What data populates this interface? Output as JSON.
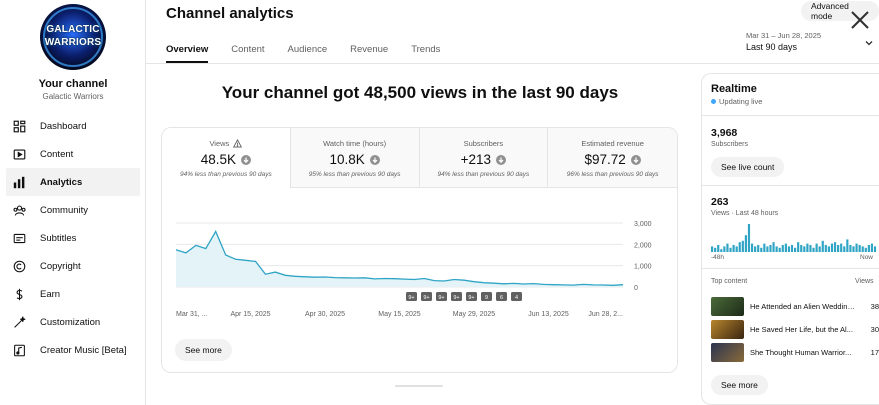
{
  "app": {
    "title": "Channel analytics",
    "advanced_mode": "Advanced mode",
    "date_range": "Mar 31 – Jun 28, 2025",
    "date_label": "Last 90 days"
  },
  "channel": {
    "logo_line1": "GALACTIC",
    "logo_line2": "WARRIORS",
    "label": "Your channel",
    "name": "Galactic Warriors"
  },
  "sidebar": {
    "items": [
      {
        "label": "Dashboard",
        "icon": "dashboard-icon"
      },
      {
        "label": "Content",
        "icon": "content-icon"
      },
      {
        "label": "Analytics",
        "icon": "analytics-icon",
        "active": true
      },
      {
        "label": "Community",
        "icon": "community-icon"
      },
      {
        "label": "Subtitles",
        "icon": "subtitles-icon"
      },
      {
        "label": "Copyright",
        "icon": "copyright-icon"
      },
      {
        "label": "Earn",
        "icon": "earn-icon"
      },
      {
        "label": "Customization",
        "icon": "customization-icon"
      },
      {
        "label": "Creator Music [Beta]",
        "icon": "creator-music-icon"
      }
    ]
  },
  "tabs": [
    "Overview",
    "Content",
    "Audience",
    "Revenue",
    "Trends"
  ],
  "headline": "Your channel got 48,500 views in the last 90 days",
  "metrics": [
    {
      "label": "Views",
      "value": "48.5K",
      "note": "94% less than previous 90 days"
    },
    {
      "label": "Watch time (hours)",
      "value": "10.8K",
      "note": "95% less than previous 90 days"
    },
    {
      "label": "Subscribers",
      "value": "+213",
      "note": "94% less than previous 90 days"
    },
    {
      "label": "Estimated revenue",
      "value": "$97.72",
      "note": "96% less than previous 90 days"
    }
  ],
  "chart_data": {
    "type": "line",
    "x": [
      "Mar 31",
      "Apr 2",
      "Apr 4",
      "Apr 6",
      "Apr 8",
      "Apr 10",
      "Apr 12",
      "Apr 14",
      "Apr 16",
      "Apr 18",
      "Apr 20",
      "Apr 22",
      "Apr 24",
      "Apr 26",
      "Apr 28",
      "Apr 30",
      "May 2",
      "May 4",
      "May 6",
      "May 8",
      "May 10",
      "May 12",
      "May 14",
      "May 16",
      "May 18",
      "May 20",
      "May 22",
      "May 24",
      "May 26",
      "May 28",
      "May 30",
      "Jun 1",
      "Jun 3",
      "Jun 5",
      "Jun 7",
      "Jun 9",
      "Jun 11",
      "Jun 13",
      "Jun 15",
      "Jun 17",
      "Jun 19",
      "Jun 21",
      "Jun 23",
      "Jun 25",
      "Jun 27",
      "Jun 28"
    ],
    "values": [
      1750,
      1600,
      1950,
      1800,
      2600,
      1500,
      1300,
      1250,
      1200,
      600,
      700,
      550,
      500,
      480,
      460,
      470,
      440,
      430,
      420,
      430,
      380,
      400,
      390,
      370,
      350,
      400,
      300,
      280,
      350,
      320,
      250,
      200,
      180,
      150,
      170,
      140,
      160,
      120,
      110,
      100,
      90,
      120,
      100,
      95,
      80,
      110
    ],
    "x_tick_labels": [
      "Mar 31, ...",
      "Apr 15, 2025",
      "Apr 30, 2025",
      "May 15, 2025",
      "May 29, 2025",
      "Jun 13, 2025",
      "Jun 28, 2..."
    ],
    "y_tick_labels": [
      "3,000",
      "2,000",
      "1,000",
      "0"
    ],
    "ylim": [
      0,
      3000
    ],
    "line_color": "#2fa4c5",
    "fill_color": "#e4f3f8",
    "grid": true,
    "markers": [
      "9+",
      "9+",
      "9+",
      "9+",
      "9+",
      "9",
      "6",
      "4"
    ]
  },
  "see_more": "See more",
  "realtime": {
    "title": "Realtime",
    "updating": "Updating live",
    "subscribers_value": "3,968",
    "subscribers_label": "Subscribers",
    "see_live_count": "See live count",
    "views_value": "263",
    "views_label": "Views · Last 48 hours",
    "axis_left": "-48h",
    "axis_right": "Now",
    "top_content_label": "Top content",
    "views_col": "Views",
    "bars": [
      4,
      3,
      5,
      2,
      4,
      6,
      3,
      5,
      4,
      7,
      8,
      12,
      20,
      6,
      4,
      5,
      3,
      6,
      4,
      5,
      7,
      4,
      3,
      5,
      6,
      4,
      5,
      3,
      7,
      5,
      4,
      6,
      5,
      3,
      6,
      4,
      8,
      5,
      4,
      6,
      7,
      5,
      6,
      4,
      9,
      5,
      4,
      6,
      5,
      4,
      3,
      5,
      6,
      4
    ],
    "videos": [
      {
        "title": "He Attended an Alien Wedding...",
        "count": "38",
        "thumb_colors": [
          "#4a6b3a",
          "#1e2a18"
        ]
      },
      {
        "title": "He Saved Her Life, but the Al...",
        "count": "30",
        "thumb_colors": [
          "#b8862e",
          "#3a2410"
        ]
      },
      {
        "title": "She Thought Human Warrior...",
        "count": "17",
        "thumb_colors": [
          "#2a3450",
          "#8a6a3a"
        ]
      }
    ],
    "see_more": "See more"
  }
}
